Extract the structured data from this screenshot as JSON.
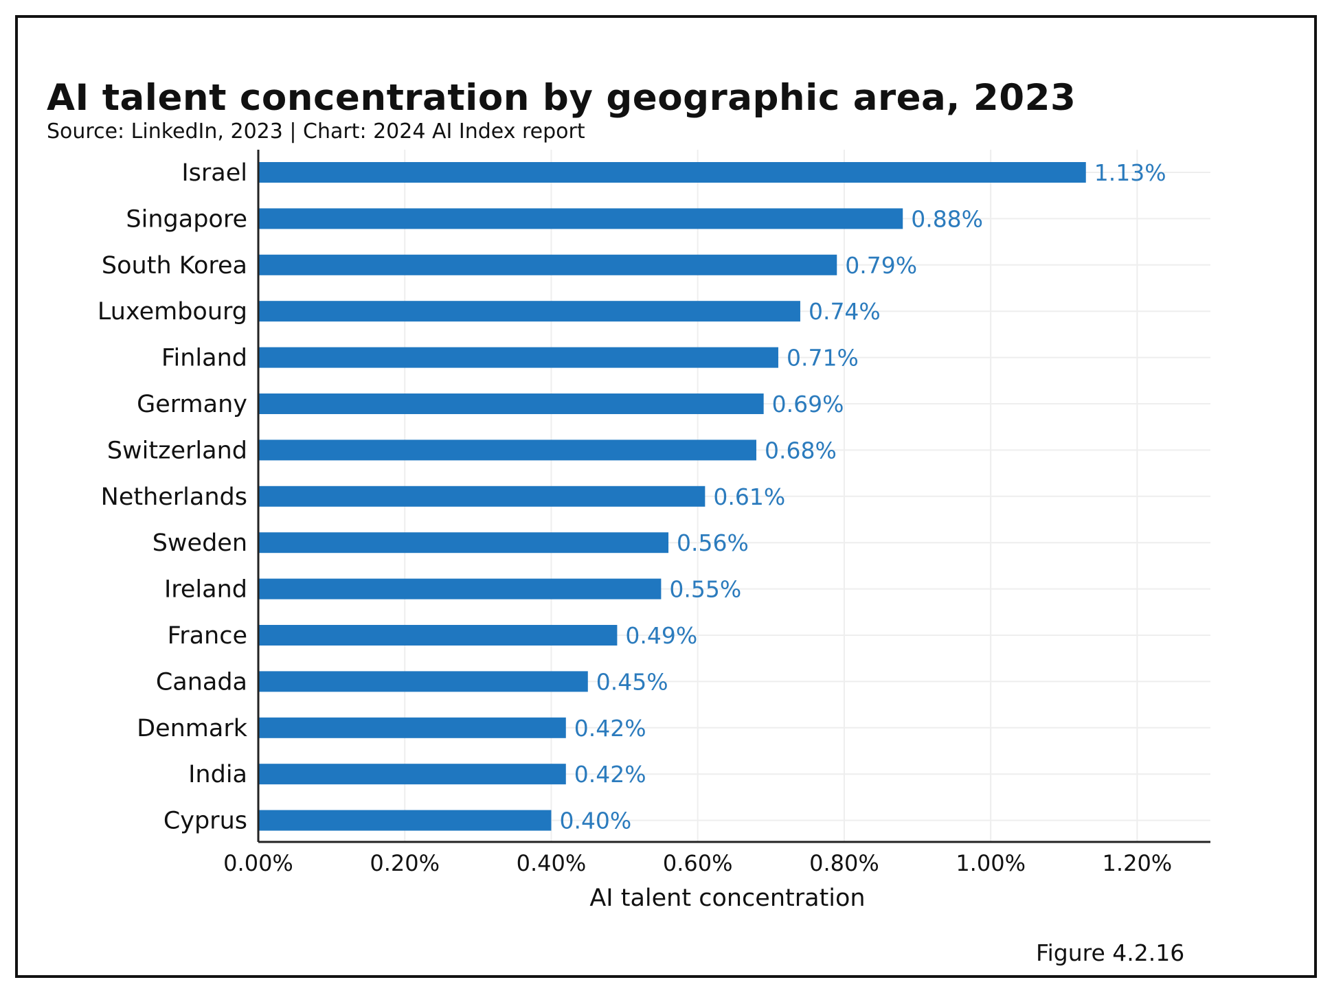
{
  "figure_label": "Figure 4.2.16",
  "colors": {
    "bar": "#1f77c0",
    "value_label": "#2b7bbd",
    "grid": "#eeeeee",
    "axis": "#222222",
    "text": "#111111"
  },
  "chart_data": {
    "type": "bar",
    "orientation": "horizontal",
    "title": "AI talent concentration by geographic area, 2023",
    "subtitle": "Source: LinkedIn, 2023 | Chart: 2024 AI Index report",
    "xlabel": "AI talent concentration",
    "ylabel": "",
    "xlim": [
      0,
      1.3
    ],
    "x_ticks": [
      0.0,
      0.2,
      0.4,
      0.6,
      0.8,
      1.0,
      1.2
    ],
    "x_tick_labels": [
      "0.00%",
      "0.20%",
      "0.40%",
      "0.60%",
      "0.80%",
      "1.00%",
      "1.20%"
    ],
    "grid": true,
    "categories": [
      "Israel",
      "Singapore",
      "South Korea",
      "Luxembourg",
      "Finland",
      "Germany",
      "Switzerland",
      "Netherlands",
      "Sweden",
      "Ireland",
      "France",
      "Canada",
      "Denmark",
      "India",
      "Cyprus"
    ],
    "values": [
      1.13,
      0.88,
      0.79,
      0.74,
      0.71,
      0.69,
      0.68,
      0.61,
      0.56,
      0.55,
      0.49,
      0.45,
      0.42,
      0.42,
      0.4
    ],
    "value_labels": [
      "1.13%",
      "0.88%",
      "0.79%",
      "0.74%",
      "0.71%",
      "0.69%",
      "0.68%",
      "0.61%",
      "0.56%",
      "0.55%",
      "0.49%",
      "0.45%",
      "0.42%",
      "0.42%",
      "0.40%"
    ]
  }
}
